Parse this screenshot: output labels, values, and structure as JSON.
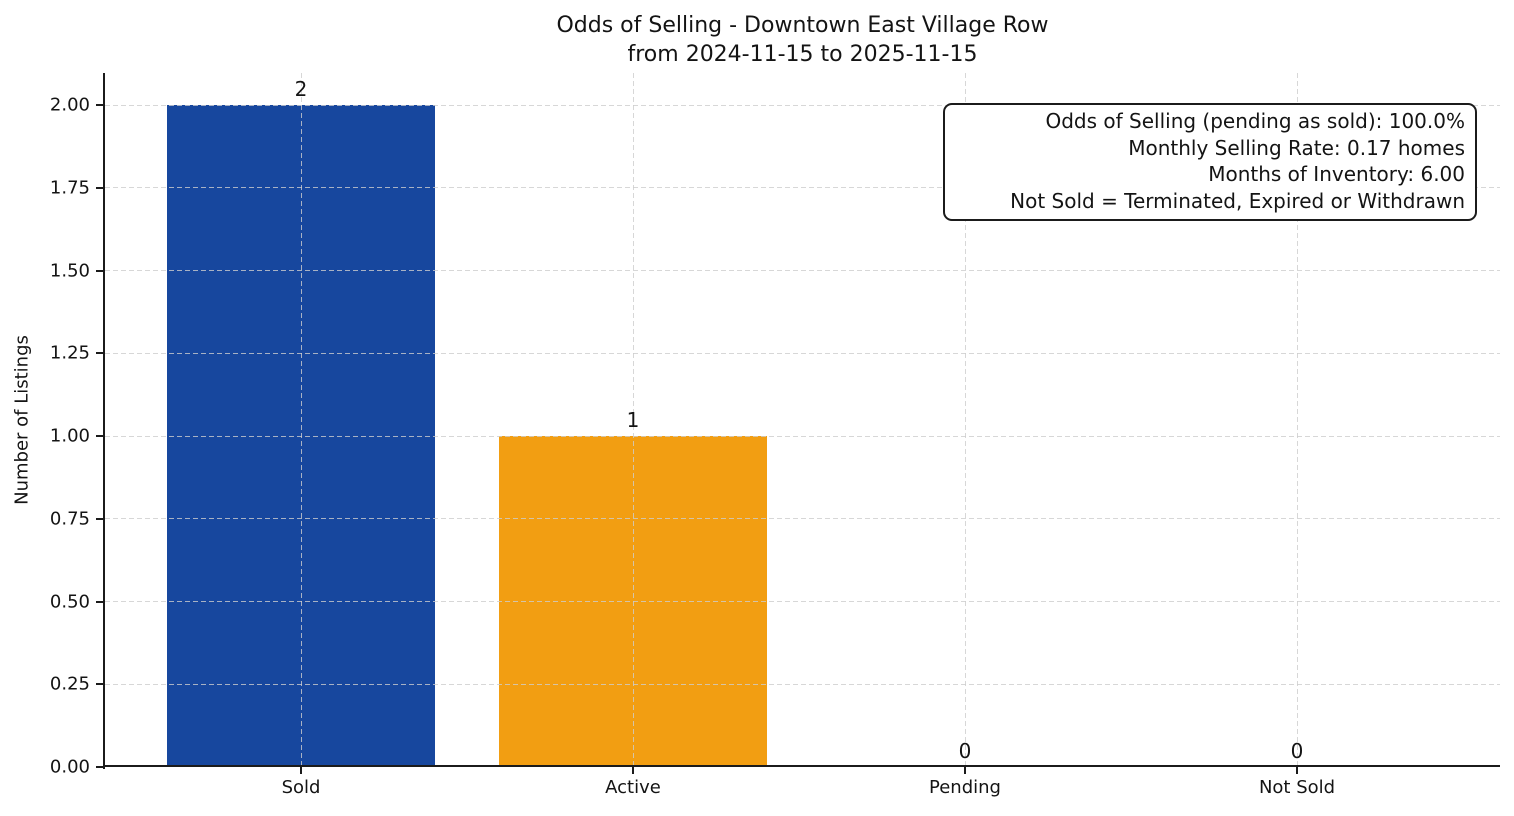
{
  "chart_data": {
    "type": "bar",
    "title": "Odds of Selling - Downtown East Village Row",
    "subtitle": "from 2024-11-15 to 2025-11-15",
    "categories": [
      "Sold",
      "Active",
      "Pending",
      "Not Sold"
    ],
    "values": [
      2,
      1,
      0,
      0
    ],
    "bar_value_labels": [
      "2",
      "1",
      "0",
      "0"
    ],
    "bar_colors": [
      "#17479e",
      "#f29e12",
      null,
      null
    ],
    "xlabel": "",
    "ylabel": "Number of Listings",
    "ylim": [
      0,
      2.1
    ],
    "yticks": [
      "0.00",
      "0.25",
      "0.50",
      "0.75",
      "1.00",
      "1.25",
      "1.50",
      "1.75",
      "2.00"
    ],
    "grid": {
      "visible": true,
      "style": "dashed",
      "color": "#d3d3d3",
      "axes": "both",
      "drawn_over_bars": true
    },
    "legend": "none",
    "annotation": {
      "position": "upper right",
      "lines": [
        "Odds of Selling (pending as sold): 100.0%",
        "Monthly Selling Rate: 0.17 homes",
        "Months of Inventory: 6.00",
        "Not Sold = Terminated, Expired or Withdrawn"
      ]
    }
  },
  "colors": {
    "sold_bar": "#17479e",
    "active_bar": "#f29e12",
    "spine": "#1b1b1b",
    "text": "#141414",
    "grid": "#d3d3d3",
    "background": "#ffffff"
  }
}
